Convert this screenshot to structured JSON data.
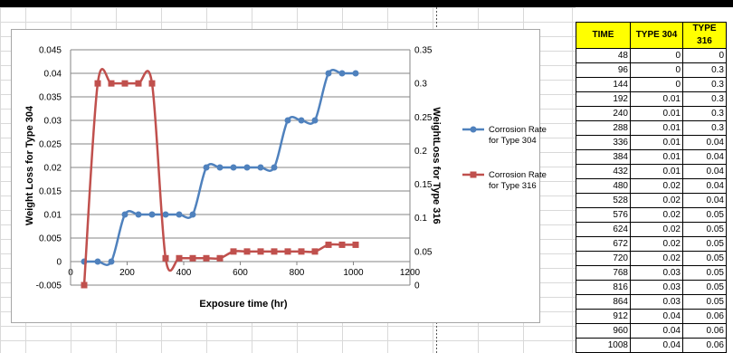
{
  "table": {
    "headers": [
      "TIME",
      "TYPE 304",
      "TYPE 316"
    ],
    "rows": [
      [
        "48",
        "0",
        "0"
      ],
      [
        "96",
        "0",
        "0.3"
      ],
      [
        "144",
        "0",
        "0.3"
      ],
      [
        "192",
        "0.01",
        "0.3"
      ],
      [
        "240",
        "0.01",
        "0.3"
      ],
      [
        "288",
        "0.01",
        "0.3"
      ],
      [
        "336",
        "0.01",
        "0.04"
      ],
      [
        "384",
        "0.01",
        "0.04"
      ],
      [
        "432",
        "0.01",
        "0.04"
      ],
      [
        "480",
        "0.02",
        "0.04"
      ],
      [
        "528",
        "0.02",
        "0.04"
      ],
      [
        "576",
        "0.02",
        "0.05"
      ],
      [
        "624",
        "0.02",
        "0.05"
      ],
      [
        "672",
        "0.02",
        "0.05"
      ],
      [
        "720",
        "0.02",
        "0.05"
      ],
      [
        "768",
        "0.03",
        "0.05"
      ],
      [
        "816",
        "0.03",
        "0.05"
      ],
      [
        "864",
        "0.03",
        "0.05"
      ],
      [
        "912",
        "0.04",
        "0.06"
      ],
      [
        "960",
        "0.04",
        "0.06"
      ],
      [
        "1008",
        "0.04",
        "0.06"
      ]
    ]
  },
  "chart_data": {
    "type": "line",
    "title": "",
    "xlabel": "Exposure time (hr)",
    "ylabel": "Weight Loss for Type 304",
    "y2label": "WeightLoss for Type 316",
    "xlim": [
      0,
      1200
    ],
    "ylim": [
      -0.005,
      0.045
    ],
    "y2lim": [
      0,
      0.35
    ],
    "x_ticks": [
      "0",
      "200",
      "400",
      "600",
      "800",
      "1000",
      "1200"
    ],
    "y_ticks": [
      "-0.005",
      "0",
      "0.005",
      "0.01",
      "0.015",
      "0.02",
      "0.025",
      "0.03",
      "0.035",
      "0.04",
      "0.045"
    ],
    "y2_ticks": [
      "0",
      "0.05",
      "0.1",
      "0.15",
      "0.2",
      "0.25",
      "0.3",
      "0.35"
    ],
    "grid": true,
    "legend_position": "right",
    "series": [
      {
        "name": "Corrosion Rate for Type 304",
        "color": "#4f81bd",
        "marker": "circle",
        "axis": "left",
        "x": [
          48,
          96,
          144,
          192,
          240,
          288,
          336,
          384,
          432,
          480,
          528,
          576,
          624,
          672,
          720,
          768,
          816,
          864,
          912,
          960,
          1008
        ],
        "values": [
          0,
          0,
          0,
          0.01,
          0.01,
          0.01,
          0.01,
          0.01,
          0.01,
          0.02,
          0.02,
          0.02,
          0.02,
          0.02,
          0.02,
          0.03,
          0.03,
          0.03,
          0.04,
          0.04,
          0.04
        ]
      },
      {
        "name": "Corrosion Rate for Type 316",
        "color": "#c0504d",
        "marker": "square",
        "axis": "right",
        "x": [
          48,
          96,
          144,
          192,
          240,
          288,
          336,
          384,
          432,
          480,
          528,
          576,
          624,
          672,
          720,
          768,
          816,
          864,
          912,
          960,
          1008
        ],
        "values": [
          0,
          0.3,
          0.3,
          0.3,
          0.3,
          0.3,
          0.04,
          0.04,
          0.04,
          0.04,
          0.04,
          0.05,
          0.05,
          0.05,
          0.05,
          0.05,
          0.05,
          0.05,
          0.06,
          0.06,
          0.06
        ]
      }
    ]
  }
}
